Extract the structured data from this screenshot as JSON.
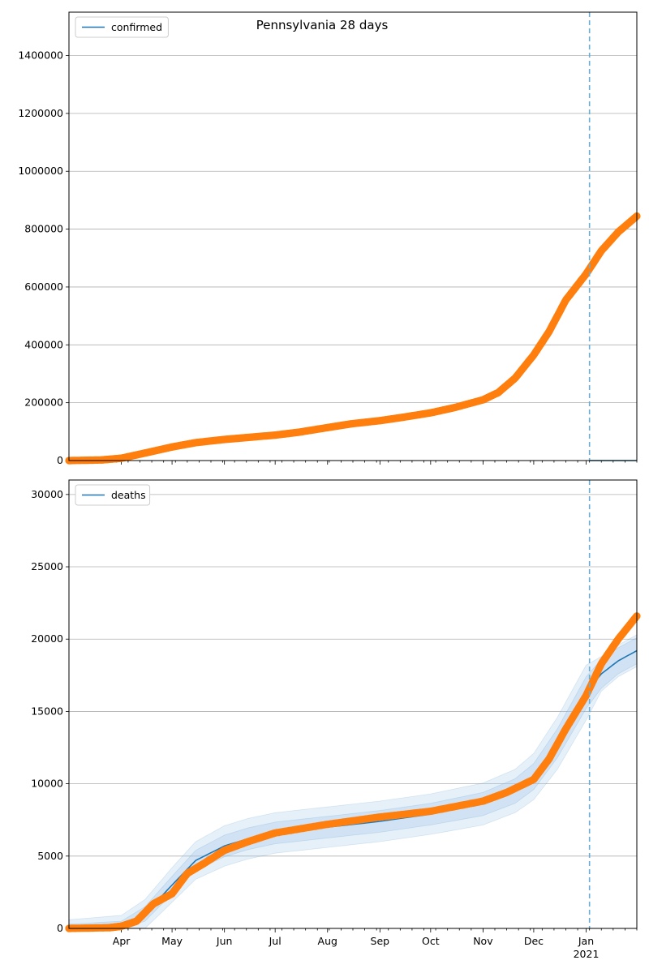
{
  "figure": {
    "title": "Pennsylvania 28 days"
  },
  "colors": {
    "observed": "#ff7f0e",
    "model": "#1f77b4",
    "band": "#a6c8e8",
    "cutoff": "#6aaed6",
    "grid": "#b0b0b0"
  },
  "x_axis": {
    "start": "2020-03-01",
    "end": "2021-01-31",
    "month_labels": [
      {
        "date": "2020-04-01",
        "label": "Apr"
      },
      {
        "date": "2020-05-01",
        "label": "May"
      },
      {
        "date": "2020-06-01",
        "label": "Jun"
      },
      {
        "date": "2020-07-01",
        "label": "Jul"
      },
      {
        "date": "2020-08-01",
        "label": "Aug"
      },
      {
        "date": "2020-09-01",
        "label": "Sep"
      },
      {
        "date": "2020-10-01",
        "label": "Oct"
      },
      {
        "date": "2020-11-01",
        "label": "Nov"
      },
      {
        "date": "2020-12-01",
        "label": "Dec"
      },
      {
        "date": "2021-01-01",
        "label": "Jan"
      }
    ],
    "year_label": "2021",
    "forecast_start": "2021-01-03"
  },
  "chart_data": [
    {
      "type": "line",
      "legend": [
        "confirmed"
      ],
      "legend_position": "upper-left",
      "grid": "y",
      "ylim": [
        0,
        1550000
      ],
      "yticks": [
        "0",
        "200000",
        "400000",
        "600000",
        "800000",
        "1000000",
        "1200000",
        "1400000"
      ],
      "series": [
        {
          "name": "confirmed",
          "x": [
            "2021-01-03",
            "2021-01-31"
          ],
          "y": [
            0,
            0
          ]
        },
        {
          "kind": "observed",
          "x": [
            "2020-03-01",
            "2020-03-20",
            "2020-04-01",
            "2020-04-15",
            "2020-05-01",
            "2020-05-15",
            "2020-06-01",
            "2020-06-15",
            "2020-07-01",
            "2020-07-15",
            "2020-08-01",
            "2020-08-15",
            "2020-09-01",
            "2020-09-15",
            "2020-10-01",
            "2020-10-15",
            "2020-11-01",
            "2020-11-10",
            "2020-11-20",
            "2020-12-01",
            "2020-12-10",
            "2020-12-20",
            "2021-01-01",
            "2021-01-10",
            "2021-01-20",
            "2021-01-31"
          ],
          "y": [
            0,
            2000,
            8000,
            26000,
            47000,
            62000,
            73000,
            80000,
            88000,
            98000,
            114000,
            127000,
            138000,
            150000,
            165000,
            183000,
            210000,
            235000,
            285000,
            365000,
            445000,
            555000,
            645000,
            725000,
            790000,
            845000
          ]
        }
      ]
    },
    {
      "type": "line",
      "legend": [
        "deaths"
      ],
      "legend_position": "upper-left",
      "grid": "y",
      "ylim": [
        0,
        31000
      ],
      "yticks": [
        "0",
        "5000",
        "10000",
        "15000",
        "20000",
        "25000",
        "30000"
      ],
      "series": [
        {
          "name": "deaths",
          "x": [
            "2020-03-01",
            "2020-04-01",
            "2020-04-15",
            "2020-05-01",
            "2020-05-15",
            "2020-06-01",
            "2020-06-15",
            "2020-07-01",
            "2020-08-01",
            "2020-09-01",
            "2020-10-01",
            "2020-11-01",
            "2020-11-20",
            "2020-12-01",
            "2020-12-15",
            "2021-01-01",
            "2021-01-10",
            "2021-01-20",
            "2021-01-31"
          ],
          "y": [
            0,
            100,
            1000,
            3000,
            4700,
            5700,
            6200,
            6600,
            7000,
            7400,
            7900,
            8600,
            9500,
            10500,
            12800,
            16300,
            17600,
            18500,
            19200
          ],
          "band_inner": [
            300,
            400,
            500,
            600,
            700,
            750,
            750,
            750,
            750,
            750,
            750,
            800,
            850,
            900,
            1000,
            1100,
            1000,
            900,
            900
          ],
          "band_outer": [
            600,
            800,
            1000,
            1200,
            1300,
            1400,
            1400,
            1400,
            1400,
            1400,
            1400,
            1450,
            1500,
            1600,
            1800,
            1900,
            1200,
            1100,
            1100
          ]
        },
        {
          "kind": "observed",
          "x": [
            "2020-03-01",
            "2020-03-25",
            "2020-04-01",
            "2020-04-10",
            "2020-04-20",
            "2020-05-01",
            "2020-05-10",
            "2020-05-20",
            "2020-06-01",
            "2020-06-15",
            "2020-07-01",
            "2020-08-01",
            "2020-09-01",
            "2020-10-01",
            "2020-11-01",
            "2020-11-15",
            "2020-12-01",
            "2020-12-10",
            "2020-12-20",
            "2021-01-01",
            "2021-01-10",
            "2021-01-20",
            "2021-01-31"
          ],
          "y": [
            0,
            50,
            150,
            500,
            1700,
            2400,
            3800,
            4500,
            5400,
            6000,
            6600,
            7200,
            7700,
            8100,
            8800,
            9400,
            10300,
            11700,
            13800,
            16100,
            18300,
            20000,
            21600
          ]
        }
      ]
    }
  ]
}
